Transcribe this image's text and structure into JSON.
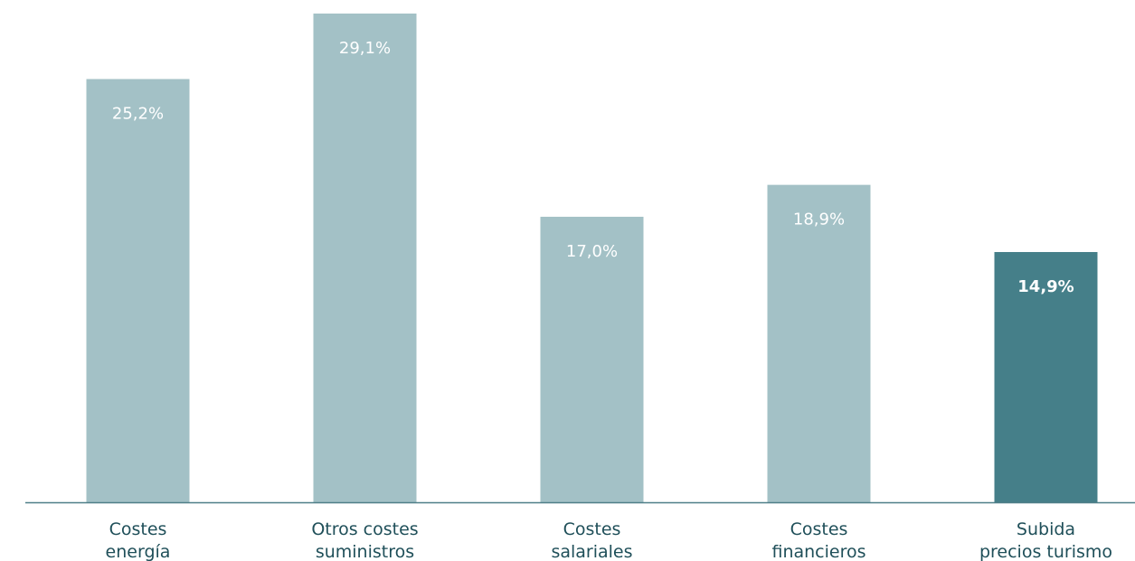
{
  "chart_data": {
    "type": "bar",
    "categories": [
      [
        "Costes",
        "energía"
      ],
      [
        "Otros costes",
        "suministros"
      ],
      [
        "Costes",
        "salariales"
      ],
      [
        "Costes",
        "financieros"
      ],
      [
        "Subida",
        "precios turismo"
      ]
    ],
    "values": [
      25.2,
      29.1,
      17.0,
      18.9,
      14.9
    ],
    "value_labels": [
      "25,2%",
      "29,1%",
      "17,0%",
      "18,9%",
      "14,9%"
    ],
    "highlight_index": 4,
    "ylim": [
      0,
      29.1
    ],
    "grid": false,
    "legend": "none",
    "colors": {
      "bar": "#a3c1c6",
      "highlight": "#457f89",
      "axis": "#4f7f88",
      "value_label": "#ffffff",
      "category_label": "#1f4f59"
    }
  }
}
